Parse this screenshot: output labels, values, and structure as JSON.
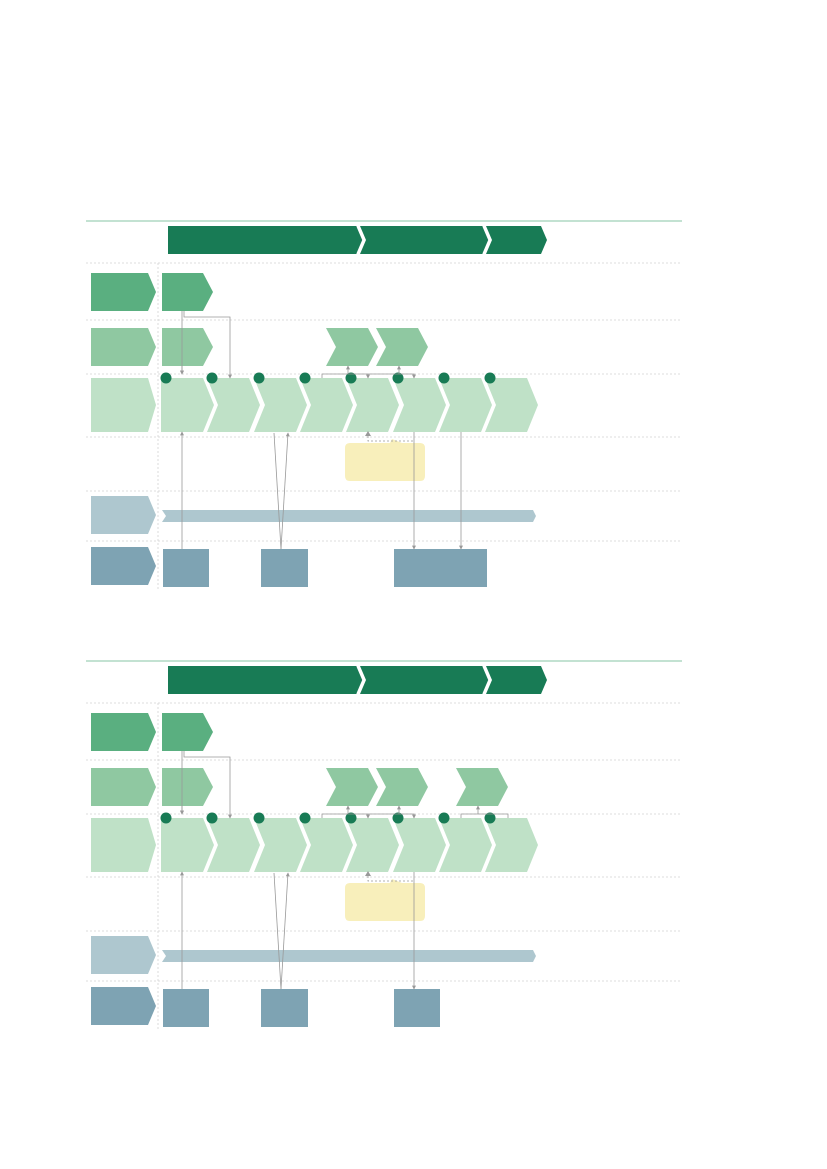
{
  "colors": {
    "dark_green": "#187b55",
    "green1": "#5aaf80",
    "green2": "#8fc8a1",
    "green3": "#bfe1c7",
    "grey_blue_light": "#aec7cf",
    "grey_blue_dark": "#7ea3b3",
    "callout_fill": "#f8efbb",
    "rule": "#9fd0b6",
    "dotted": "#d3d3d3",
    "connector": "#999999"
  },
  "diagrams": [
    {
      "label": "",
      "phase_banner": [
        {
          "label": ""
        },
        {
          "label": ""
        },
        {
          "label": ""
        }
      ],
      "rows": [
        {
          "header": "",
          "items": [
            {
              "label": ""
            }
          ]
        },
        {
          "header": "",
          "items": [
            {
              "label": ""
            },
            {
              "label": ""
            },
            {
              "label": ""
            }
          ]
        },
        {
          "header": "",
          "milestones": 8,
          "items": [
            {
              "label": ""
            },
            {
              "label": ""
            },
            {
              "label": ""
            },
            {
              "label": ""
            },
            {
              "label": ""
            },
            {
              "label": ""
            },
            {
              "label": ""
            },
            {
              "label": ""
            }
          ]
        },
        {
          "header": "",
          "callout": ""
        },
        {
          "header": "",
          "bar": ""
        },
        {
          "header": "",
          "boxes": [
            {
              "label": ""
            },
            {
              "label": ""
            },
            {
              "label": ""
            }
          ]
        }
      ]
    },
    {
      "label": "",
      "phase_banner": [
        {
          "label": ""
        },
        {
          "label": ""
        },
        {
          "label": ""
        }
      ],
      "rows": [
        {
          "header": "",
          "items": [
            {
              "label": ""
            }
          ]
        },
        {
          "header": "",
          "items": [
            {
              "label": ""
            },
            {
              "label": ""
            },
            {
              "label": ""
            },
            {
              "label": ""
            }
          ]
        },
        {
          "header": "",
          "milestones": 8,
          "items": [
            {
              "label": ""
            },
            {
              "label": ""
            },
            {
              "label": ""
            },
            {
              "label": ""
            },
            {
              "label": ""
            },
            {
              "label": ""
            },
            {
              "label": ""
            },
            {
              "label": ""
            }
          ]
        },
        {
          "header": "",
          "callout": ""
        },
        {
          "header": "",
          "bar": ""
        },
        {
          "header": "",
          "boxes": [
            {
              "label": ""
            },
            {
              "label": ""
            },
            {
              "label": ""
            }
          ]
        }
      ]
    }
  ]
}
